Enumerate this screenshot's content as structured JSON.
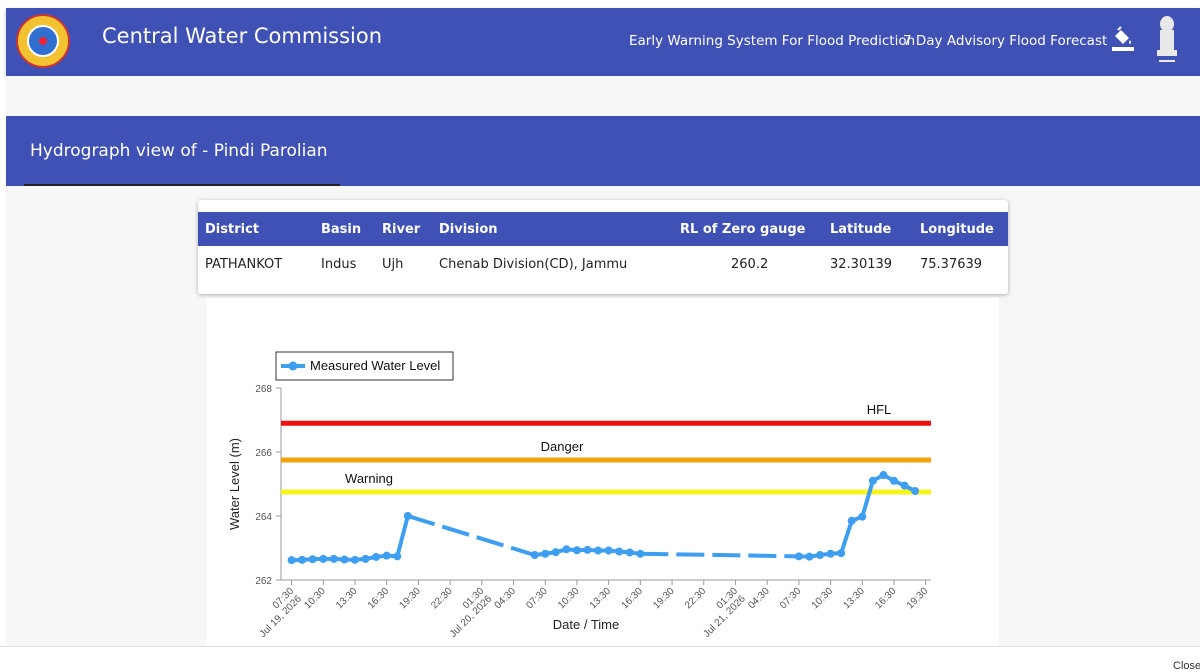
{
  "header": {
    "title": "Central Water Commission",
    "nav_links": [
      "Early Warning System For Flood Prediction",
      "7 Day Advisory Flood Forecast"
    ],
    "icons": [
      "cwc-logo-icon",
      "paint-bucket-icon",
      "national-emblem-icon"
    ]
  },
  "page": {
    "title": "Hydrograph view of - Pindi Parolian"
  },
  "station_table": {
    "columns": [
      "District",
      "Basin",
      "River",
      "Division",
      "RL of Zero gauge",
      "Latitude",
      "Longitude"
    ],
    "row": [
      "PATHANKOT",
      "Indus",
      "Ujh",
      "Chenab Division(CD), Jammu",
      "260.2",
      "32.30139",
      "75.37639"
    ]
  },
  "footer": {
    "close_label": "Close"
  },
  "chart_data": {
    "type": "line",
    "title": "",
    "xlabel": "Date / Time",
    "ylabel": "Water Level (m)",
    "ylim": [
      262,
      268
    ],
    "yticks": [
      262,
      264,
      266,
      268
    ],
    "xlim": [
      "2026-07-19 06:30",
      "2026-07-21 20:00"
    ],
    "xtick_labels": [
      "07:30\nJul 19, 2026",
      "10:30",
      "13:30",
      "16:30",
      "19:30",
      "22:30",
      "01:30\nJul 20, 2026",
      "04:30",
      "07:30",
      "10:30",
      "13:30",
      "16:30",
      "19:30",
      "22:30",
      "01:30\nJul 21, 2026",
      "04:30",
      "07:30",
      "10:30",
      "13:30",
      "16:30",
      "19:30"
    ],
    "grid": false,
    "legend_position": "top-left",
    "thresholds": [
      {
        "name": "HFL",
        "value": 266.9,
        "color": "#ee1111"
      },
      {
        "name": "Danger",
        "value": 265.75,
        "color": "#f0a30a"
      },
      {
        "name": "Warning",
        "value": 264.75,
        "color": "#f5f51e"
      }
    ],
    "series": [
      {
        "name": "Measured Water Level",
        "color": "#3e9ef0",
        "points": [
          [
            "2026-07-19 07:30",
            262.62
          ],
          [
            "2026-07-19 08:30",
            262.63
          ],
          [
            "2026-07-19 09:30",
            262.65
          ],
          [
            "2026-07-19 10:30",
            262.66
          ],
          [
            "2026-07-19 11:30",
            262.66
          ],
          [
            "2026-07-19 12:30",
            262.64
          ],
          [
            "2026-07-19 13:30",
            262.63
          ],
          [
            "2026-07-19 14:30",
            262.66
          ],
          [
            "2026-07-19 15:30",
            262.72
          ],
          [
            "2026-07-19 16:30",
            262.76
          ],
          [
            "2026-07-19 17:30",
            262.74
          ],
          [
            "2026-07-19 18:30",
            264.0
          ],
          [
            "2026-07-20 06:30",
            262.78
          ],
          [
            "2026-07-20 07:30",
            262.82
          ],
          [
            "2026-07-20 08:30",
            262.87
          ],
          [
            "2026-07-20 09:30",
            262.96
          ],
          [
            "2026-07-20 10:30",
            262.93
          ],
          [
            "2026-07-20 11:30",
            262.94
          ],
          [
            "2026-07-20 12:30",
            262.92
          ],
          [
            "2026-07-20 13:30",
            262.92
          ],
          [
            "2026-07-20 14:30",
            262.89
          ],
          [
            "2026-07-20 15:30",
            262.86
          ],
          [
            "2026-07-20 16:30",
            262.82
          ],
          [
            "2026-07-21 07:30",
            262.74
          ],
          [
            "2026-07-21 08:30",
            262.73
          ],
          [
            "2026-07-21 09:30",
            262.78
          ],
          [
            "2026-07-21 10:30",
            262.82
          ],
          [
            "2026-07-21 11:30",
            262.84
          ],
          [
            "2026-07-21 12:30",
            263.85
          ],
          [
            "2026-07-21 13:30",
            263.98
          ],
          [
            "2026-07-21 14:30",
            265.1
          ],
          [
            "2026-07-21 15:30",
            265.28
          ],
          [
            "2026-07-21 16:30",
            265.1
          ],
          [
            "2026-07-21 17:30",
            264.95
          ],
          [
            "2026-07-21 18:30",
            264.78
          ]
        ]
      }
    ]
  }
}
